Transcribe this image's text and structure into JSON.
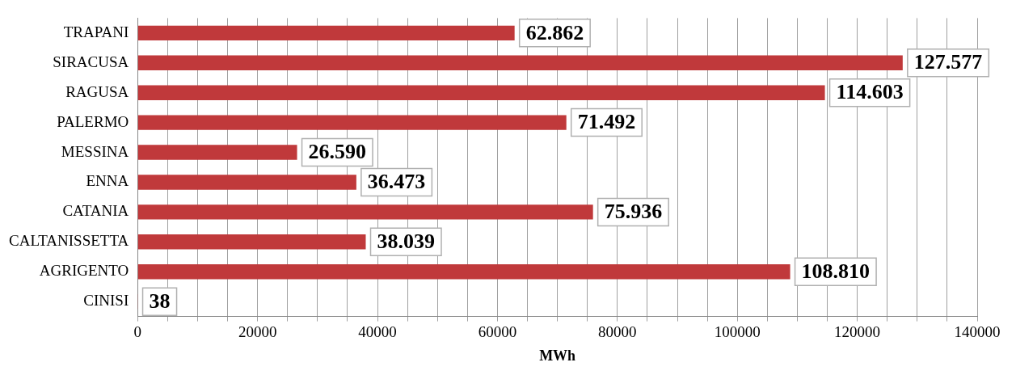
{
  "chart_data": {
    "type": "bar",
    "orientation": "horizontal",
    "xlabel": "MWh",
    "categories": [
      "TRAPANI",
      "SIRACUSA",
      "RAGUSA",
      "PALERMO",
      "MESSINA",
      "ENNA",
      "CATANIA",
      "CALTANISSETTA",
      "AGRIGENTO",
      "CINISI"
    ],
    "values": [
      62862,
      127577,
      114603,
      71492,
      26590,
      36473,
      75936,
      38039,
      108810,
      38
    ],
    "value_labels": [
      "62.862",
      "127.577",
      "114.603",
      "71.492",
      "26.590",
      "36.473",
      "75.936",
      "38.039",
      "108.810",
      "38"
    ],
    "color": "#c0393b",
    "xlim": [
      0,
      140000
    ],
    "xticks": [
      0,
      {
        "value": 5000,
        "label": null
      },
      {
        "value": 10000,
        "label": null
      },
      {
        "value": 15000,
        "label": null
      },
      20000,
      {
        "value": 25000,
        "label": null
      },
      {
        "value": 30000,
        "label": null
      },
      {
        "value": 35000,
        "label": null
      },
      40000,
      {
        "value": 45000,
        "label": null
      },
      {
        "value": 50000,
        "label": null
      },
      {
        "value": 55000,
        "label": null
      },
      60000,
      {
        "value": 65000,
        "label": null
      },
      {
        "value": 70000,
        "label": null
      },
      {
        "value": 75000,
        "label": null
      },
      80000,
      {
        "value": 85000,
        "label": null
      },
      {
        "value": 90000,
        "label": null
      },
      {
        "value": 95000,
        "label": null
      },
      100000,
      {
        "value": 105000,
        "label": null
      },
      {
        "value": 110000,
        "label": null
      },
      {
        "value": 115000,
        "label": null
      },
      120000,
      {
        "value": 125000,
        "label": null
      },
      {
        "value": 130000,
        "label": null
      },
      {
        "value": 135000,
        "label": null
      },
      140000
    ],
    "grid": "x",
    "legend": false
  }
}
